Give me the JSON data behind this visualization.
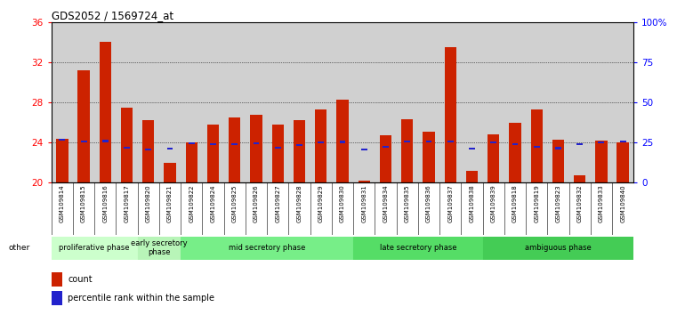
{
  "title": "GDS2052 / 1569724_at",
  "samples": [
    "GSM109814",
    "GSM109815",
    "GSM109816",
    "GSM109817",
    "GSM109820",
    "GSM109821",
    "GSM109822",
    "GSM109824",
    "GSM109825",
    "GSM109826",
    "GSM109827",
    "GSM109828",
    "GSM109829",
    "GSM109830",
    "GSM109831",
    "GSM109834",
    "GSM109835",
    "GSM109836",
    "GSM109837",
    "GSM109838",
    "GSM109839",
    "GSM109818",
    "GSM109819",
    "GSM109823",
    "GSM109832",
    "GSM109833",
    "GSM109840"
  ],
  "count_values": [
    24.4,
    31.2,
    34.0,
    27.5,
    26.2,
    22.0,
    24.0,
    25.8,
    26.5,
    26.8,
    25.8,
    26.2,
    27.3,
    28.3,
    20.2,
    24.7,
    26.3,
    25.1,
    33.5,
    21.2,
    24.8,
    26.0,
    27.3,
    24.3,
    20.7,
    24.2,
    24.0
  ],
  "percentile_values": [
    24.3,
    24.1,
    24.15,
    23.5,
    23.3,
    23.4,
    23.9,
    23.85,
    23.85,
    23.9,
    23.5,
    23.75,
    24.0,
    24.05,
    23.3,
    23.6,
    24.1,
    24.1,
    24.1,
    23.4,
    24.0,
    23.85,
    23.6,
    23.45,
    23.85,
    24.0,
    24.1
  ],
  "phase_groups": [
    {
      "label": "proliferative phase",
      "count": 4,
      "color": "#ccffcc"
    },
    {
      "label": "early secretory\nphase",
      "count": 2,
      "color": "#b8f5b8"
    },
    {
      "label": "mid secretory phase",
      "count": 8,
      "color": "#77ee88"
    },
    {
      "label": "late secretory phase",
      "count": 6,
      "color": "#55dd66"
    },
    {
      "label": "ambiguous phase",
      "count": 7,
      "color": "#44cc55"
    }
  ],
  "ylim_left": [
    20,
    36
  ],
  "ylim_right": [
    0,
    100
  ],
  "yticks_left": [
    20,
    24,
    28,
    32,
    36
  ],
  "yticks_right": [
    0,
    25,
    50,
    75,
    100
  ],
  "yticklabels_right": [
    "0",
    "25",
    "50",
    "75",
    "100%"
  ],
  "bar_color": "#cc2200",
  "percentile_color": "#2222cc",
  "col_bg_color": "#d0d0d0",
  "other_label": "other"
}
